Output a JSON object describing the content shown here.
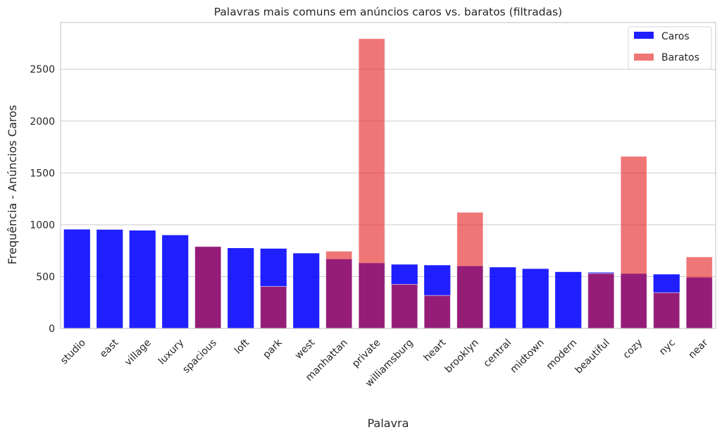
{
  "chart_data": {
    "type": "bar",
    "title": "Palavras mais comuns em anúncios caros vs. baratos (filtradas)",
    "xlabel": "Palavra",
    "ylabel": "Frequência - Anúncios Caros",
    "ylim": [
      0,
      2950
    ],
    "yticks": [
      0,
      500,
      1000,
      1500,
      2000,
      2500
    ],
    "grid": "horizontal",
    "legend_position": "top-right",
    "categories": [
      "studio",
      "east",
      "village",
      "luxury",
      "spacious",
      "loft",
      "park",
      "west",
      "manhattan",
      "private",
      "williamsburg",
      "heart",
      "brooklyn",
      "central",
      "midtown",
      "modern",
      "beautiful",
      "cozy",
      "nyc",
      "near"
    ],
    "series": [
      {
        "name": "Caros",
        "color": "#0000ff",
        "values": [
          955,
          953,
          945,
          900,
          790,
          775,
          770,
          725,
          668,
          630,
          617,
          610,
          601,
          590,
          575,
          545,
          540,
          528,
          522,
          492
        ]
      },
      {
        "name": "Baratos",
        "color": "#e41a1c",
        "values": [
          0,
          0,
          0,
          0,
          790,
          0,
          405,
          0,
          745,
          2795,
          425,
          318,
          1120,
          0,
          0,
          0,
          530,
          1660,
          345,
          690
        ]
      }
    ]
  }
}
